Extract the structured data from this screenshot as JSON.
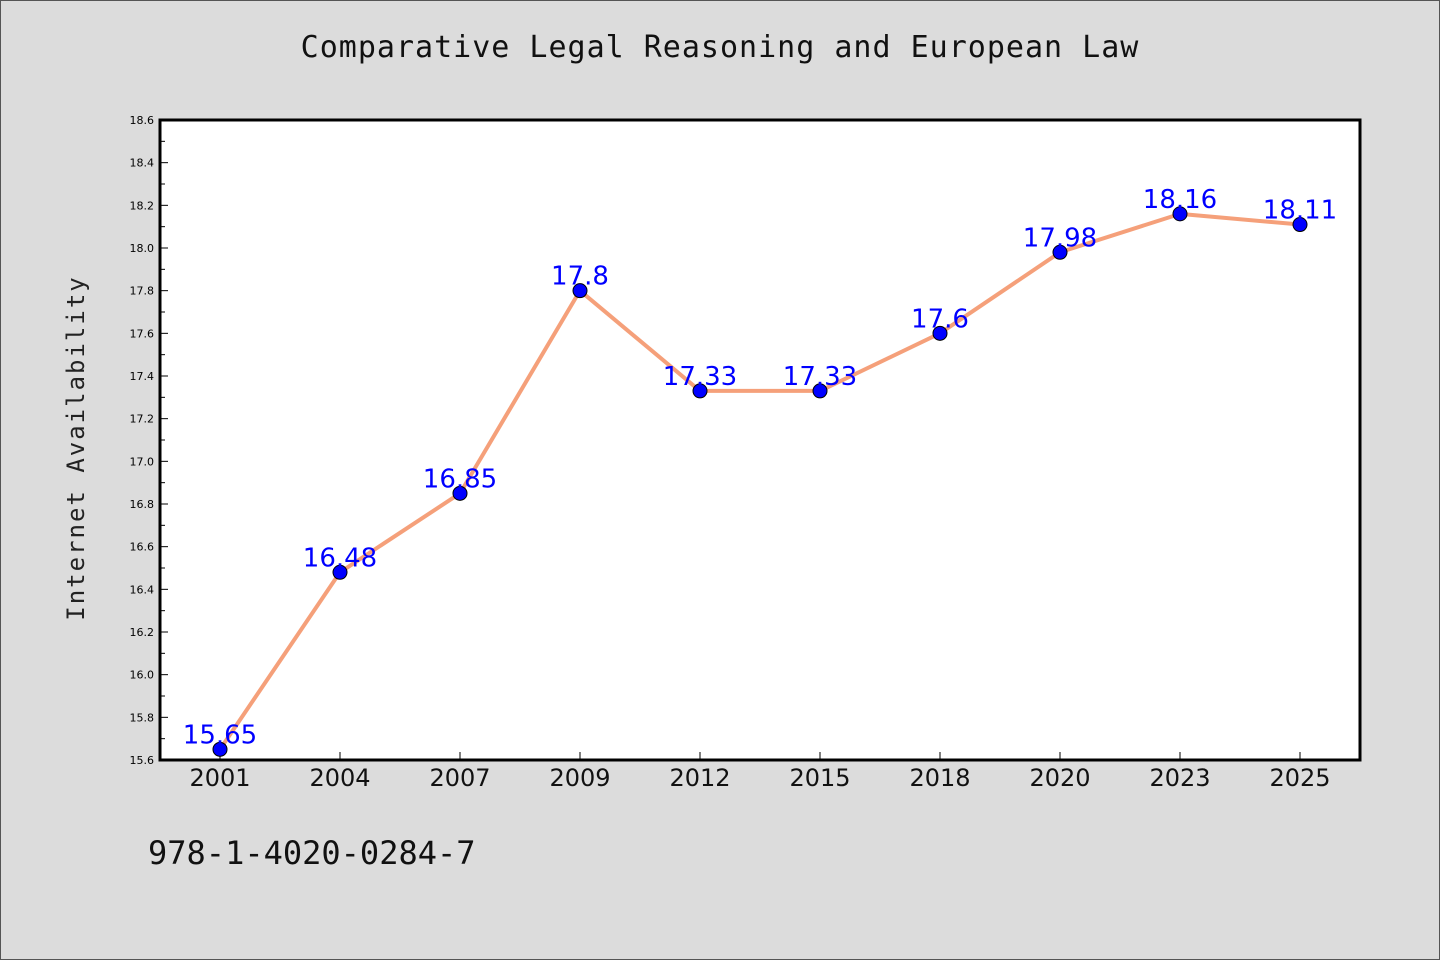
{
  "chart_data": {
    "type": "line",
    "title": "Comparative Legal Reasoning and European Law",
    "xlabel": "",
    "ylabel": "Internet Availability",
    "categories": [
      "2001",
      "2004",
      "2007",
      "2009",
      "2012",
      "2015",
      "2018",
      "2020",
      "2023",
      "2025"
    ],
    "series": [
      {
        "values": [
          15.65,
          16.48,
          16.85,
          17.8,
          17.33,
          17.33,
          17.6,
          17.98,
          18.16,
          18.11
        ],
        "line_color": "#f5a07a",
        "marker_color": "#0000ff"
      }
    ],
    "data_labels": [
      "15.65",
      "16.48",
      "16.85",
      "17.8",
      "17.33",
      "17.33",
      "17.6",
      "17.98",
      "18.16",
      "18.11"
    ],
    "ylim": [
      15.6,
      18.6
    ],
    "yticks": [
      "15.6",
      "15.8",
      "16.0",
      "16.2",
      "16.4",
      "16.6",
      "16.8",
      "17.0",
      "17.2",
      "17.4",
      "17.6",
      "17.8",
      "18.0",
      "18.2",
      "18.4",
      "18.6"
    ],
    "grid": false,
    "legend": "none"
  },
  "footer": {
    "isbn": "978-1-4020-0284-7"
  },
  "colors": {
    "background": "#dcdcdc",
    "plot_background": "#ffffff",
    "line": "#f5a07a",
    "marker": "#0000ff",
    "data_label": "#0000ff"
  }
}
